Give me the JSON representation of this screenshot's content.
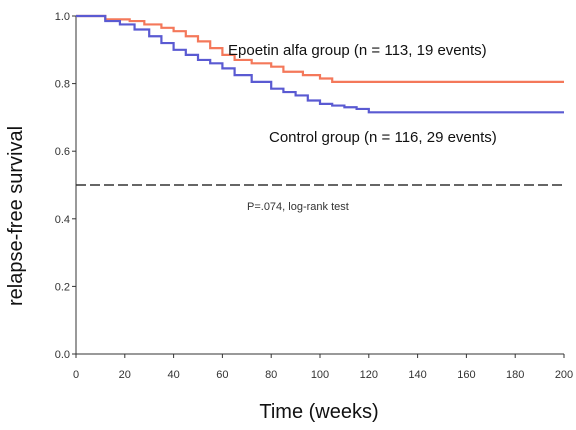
{
  "chart_data": {
    "type": "line",
    "title": "",
    "xlabel": "Time (weeks)",
    "ylabel": "relapse-free survival",
    "xlim": [
      0,
      200
    ],
    "ylim": [
      0.0,
      1.0
    ],
    "x_ticks": [
      "0",
      "20",
      "40",
      "60",
      "80",
      "100",
      "120",
      "140",
      "160",
      "180",
      "200"
    ],
    "y_ticks": [
      "0.0",
      "0.2",
      "0.4",
      "0.6",
      "0.8",
      "1.0"
    ],
    "grid": false,
    "series": [
      {
        "name": "Epoetin alfa group (n = 113, 19 events)",
        "color": "#f4785a",
        "step": true,
        "x": [
          0,
          12,
          22,
          28,
          35,
          40,
          45,
          50,
          55,
          60,
          65,
          72,
          80,
          85,
          93,
          100,
          105,
          120,
          140,
          160,
          180,
          200
        ],
        "y": [
          1.0,
          0.99,
          0.985,
          0.975,
          0.965,
          0.955,
          0.94,
          0.925,
          0.905,
          0.885,
          0.87,
          0.86,
          0.85,
          0.835,
          0.825,
          0.815,
          0.805,
          0.805,
          0.805,
          0.805,
          0.805,
          0.805
        ]
      },
      {
        "name": "Control group (n = 116, 29 events)",
        "color": "#5a5ad2",
        "step": true,
        "x": [
          0,
          12,
          18,
          24,
          30,
          35,
          40,
          45,
          50,
          55,
          60,
          65,
          72,
          80,
          85,
          90,
          95,
          100,
          105,
          110,
          115,
          120,
          140,
          160,
          180,
          200
        ],
        "y": [
          1.0,
          0.985,
          0.975,
          0.96,
          0.94,
          0.92,
          0.9,
          0.885,
          0.87,
          0.86,
          0.845,
          0.825,
          0.805,
          0.785,
          0.775,
          0.765,
          0.75,
          0.74,
          0.735,
          0.73,
          0.725,
          0.715,
          0.715,
          0.715,
          0.715,
          0.715
        ]
      }
    ],
    "reference_line": {
      "y": 0.5,
      "style": "dashed",
      "color": "#333333"
    },
    "annotations": [
      "P=.074, log-rank test"
    ]
  }
}
